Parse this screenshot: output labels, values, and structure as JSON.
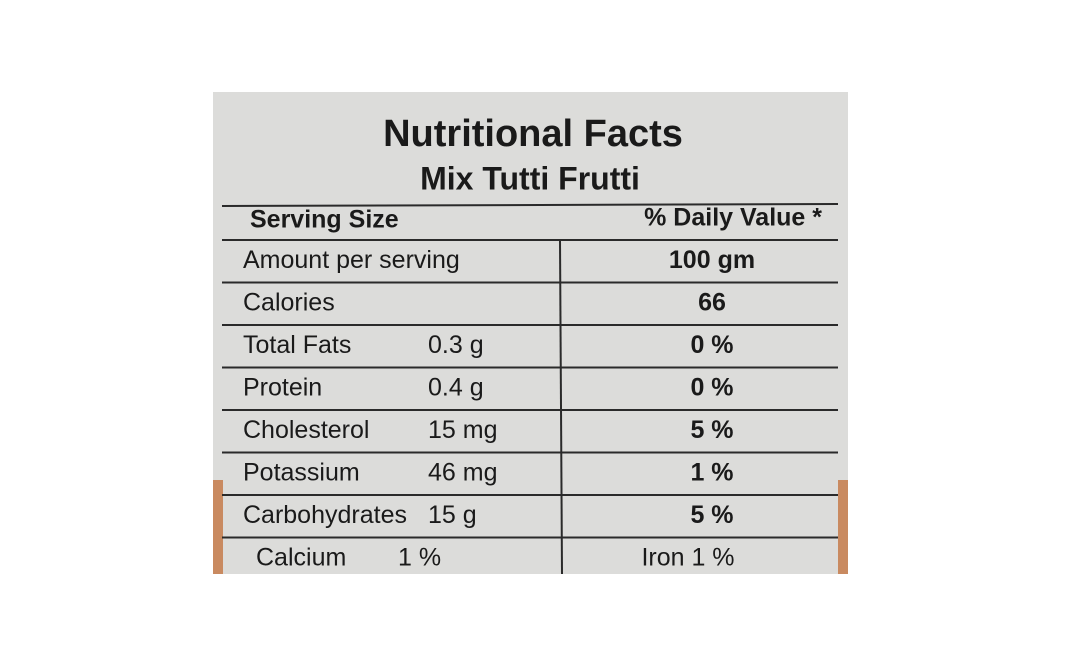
{
  "header": {
    "title": "Nutritional Facts",
    "subtitle": "Mix Tutti Frutti"
  },
  "table": {
    "columns": [
      "Serving Size",
      "% Daily Value *"
    ],
    "rows": [
      {
        "name": "Amount per serving",
        "daily": "100 gm"
      },
      {
        "name": "Calories",
        "daily": "66"
      },
      {
        "name": "Total Fats",
        "amount": "0.3 g",
        "daily": "0 %"
      },
      {
        "name": "Protein",
        "amount": "0.4 g",
        "daily": "0 %"
      },
      {
        "name": "Cholesterol",
        "amount": "15 mg",
        "daily": "5 %"
      },
      {
        "name": "Potassium",
        "amount": "46 mg",
        "daily": "1 %"
      },
      {
        "name": "Carbohydrates",
        "amount": "15 g",
        "daily": "5 %"
      },
      {
        "name": "Calcium",
        "amount": "1 %",
        "daily": "Iron 1 %"
      }
    ]
  }
}
